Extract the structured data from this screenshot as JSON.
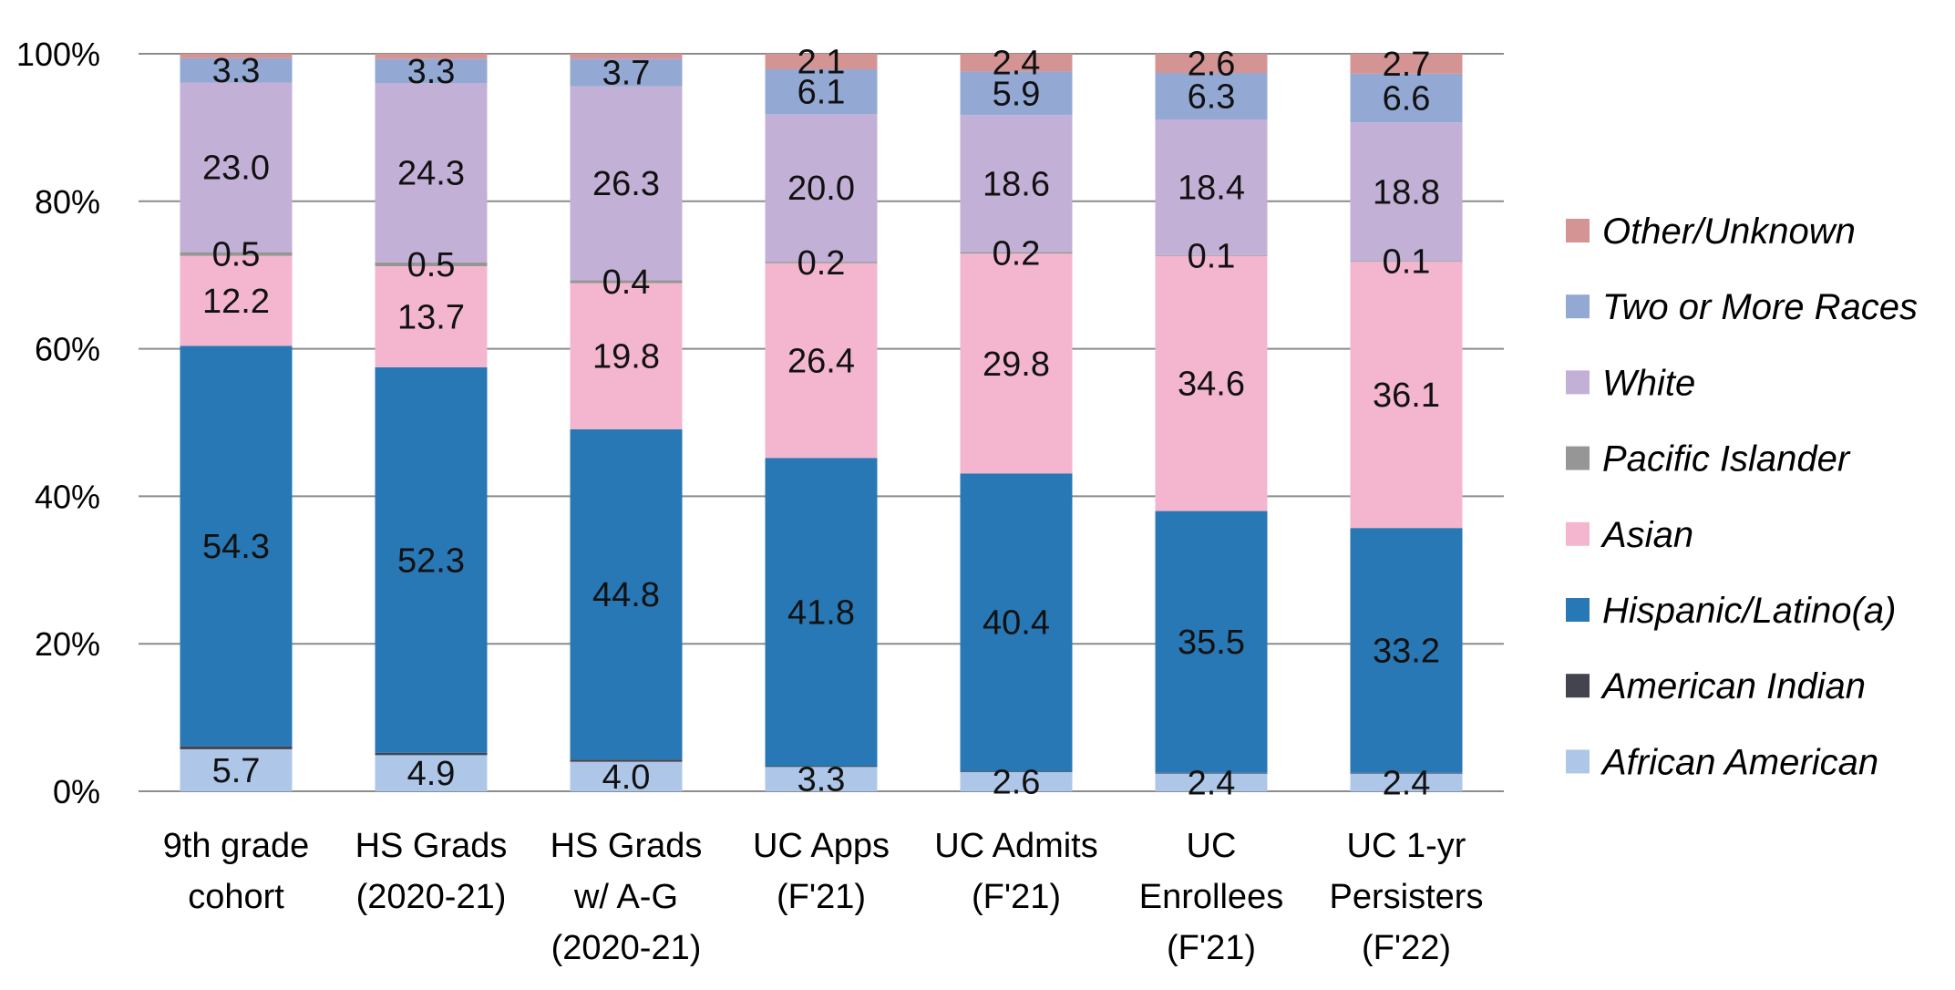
{
  "chart_data": {
    "type": "bar",
    "stacked": true,
    "normalized": true,
    "categories": [
      "9th grade cohort",
      "HS Grads (2020-21)",
      "HS Grads w/ A-G (2020-21)",
      "UC Apps (F'21)",
      "UC Admits (F'21)",
      "UC Enrollees (F'21)",
      "UC 1-yr Persisters (F'22)"
    ],
    "category_lines": [
      [
        "9th grade",
        "cohort"
      ],
      [
        "HS Grads",
        "(2020-21)"
      ],
      [
        "HS Grads",
        "w/ A-G",
        "(2020-21)"
      ],
      [
        "UC Apps",
        "(F'21)"
      ],
      [
        "UC Admits",
        "(F'21)"
      ],
      [
        "UC",
        "Enrollees",
        "(F'21)"
      ],
      [
        "UC 1-yr",
        "Persisters",
        "(F'22)"
      ]
    ],
    "series": [
      {
        "name": "African American",
        "color": "#AEC7E8",
        "values": [
          5.7,
          4.9,
          4.0,
          3.3,
          2.6,
          2.4,
          2.4
        ],
        "labels": [
          "5.7",
          "4.9",
          "4.0",
          "3.3",
          "2.6",
          "2.4",
          "2.4"
        ]
      },
      {
        "name": "American Indian",
        "color": "#44444F",
        "values": [
          0.4,
          0.3,
          0.3,
          0.1,
          0.1,
          0.1,
          0.1
        ],
        "labels": null
      },
      {
        "name": "Hispanic/Latino(a)",
        "color": "#2878B5",
        "values": [
          54.3,
          52.3,
          44.8,
          41.8,
          40.4,
          35.5,
          33.2
        ],
        "labels": [
          "54.3",
          "52.3",
          "44.8",
          "41.8",
          "40.4",
          "35.5",
          "33.2"
        ]
      },
      {
        "name": "Asian",
        "color": "#F4B6CF",
        "values": [
          12.2,
          13.7,
          19.8,
          26.4,
          29.8,
          34.6,
          36.1
        ],
        "labels": [
          "12.2",
          "13.7",
          "19.8",
          "26.4",
          "29.8",
          "34.6",
          "36.1"
        ]
      },
      {
        "name": "Pacific Islander",
        "color": "#969696",
        "values": [
          0.5,
          0.5,
          0.4,
          0.2,
          0.2,
          0.1,
          0.1
        ],
        "labels": [
          "0.5",
          "0.5",
          "0.4",
          "0.2",
          "0.2",
          "0.1",
          "0.1"
        ]
      },
      {
        "name": "White",
        "color": "#C3B0D6",
        "values": [
          23.0,
          24.3,
          26.3,
          20.0,
          18.6,
          18.4,
          18.8
        ],
        "labels": [
          "23.0",
          "24.3",
          "26.3",
          "20.0",
          "18.6",
          "18.4",
          "18.8"
        ]
      },
      {
        "name": "Two or More Races",
        "color": "#93A9D4",
        "values": [
          3.3,
          3.3,
          3.7,
          6.1,
          5.9,
          6.3,
          6.6
        ],
        "labels": [
          "3.3",
          "3.3",
          "3.7",
          "6.1",
          "5.9",
          "6.3",
          "6.6"
        ]
      },
      {
        "name": "Other/Unknown",
        "color": "#D49494",
        "values": [
          0.6,
          0.7,
          0.7,
          2.1,
          2.4,
          2.6,
          2.7
        ],
        "labels": [
          null,
          null,
          null,
          "2.1",
          "2.4",
          "2.6",
          "2.7"
        ]
      }
    ],
    "legend_order": [
      "Other/Unknown",
      "Two or More Races",
      "White",
      "Pacific Islander",
      "Asian",
      "Hispanic/Latino(a)",
      "American Indian",
      "African American"
    ],
    "yticks": [
      "0%",
      "20%",
      "40%",
      "60%",
      "80%",
      "100%"
    ],
    "ylim": [
      0,
      100
    ],
    "grid": true,
    "legend_position": "right"
  }
}
